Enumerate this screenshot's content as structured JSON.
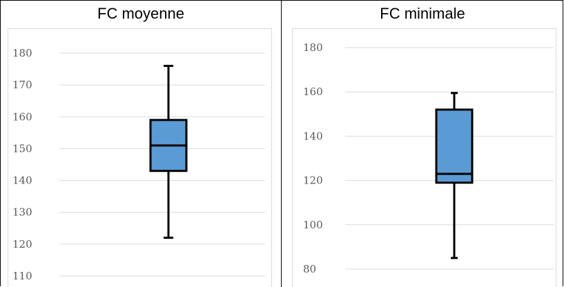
{
  "chart_data": [
    {
      "type": "box",
      "title": "FC moyenne",
      "ylim": [
        110,
        180
      ],
      "yticks": [
        110,
        120,
        130,
        140,
        150,
        160,
        170,
        180
      ],
      "grid": true,
      "colors": {
        "box_fill": "#5b9bd5",
        "box_stroke": "#000000",
        "grid": "#d9d9d9",
        "tick_text": "#595959"
      },
      "box": {
        "min": 122,
        "q1": 143,
        "median": 151,
        "q3": 159,
        "max": 176
      }
    },
    {
      "type": "box",
      "title": "FC minimale",
      "ylim": [
        80,
        180
      ],
      "yticks": [
        80,
        100,
        120,
        140,
        160,
        180
      ],
      "grid": true,
      "colors": {
        "box_fill": "#5b9bd5",
        "box_stroke": "#000000",
        "grid": "#d9d9d9",
        "tick_text": "#595959"
      },
      "box": {
        "min": 85,
        "q1": 119,
        "median": 123,
        "q3": 152,
        "max": 159.5
      }
    }
  ]
}
